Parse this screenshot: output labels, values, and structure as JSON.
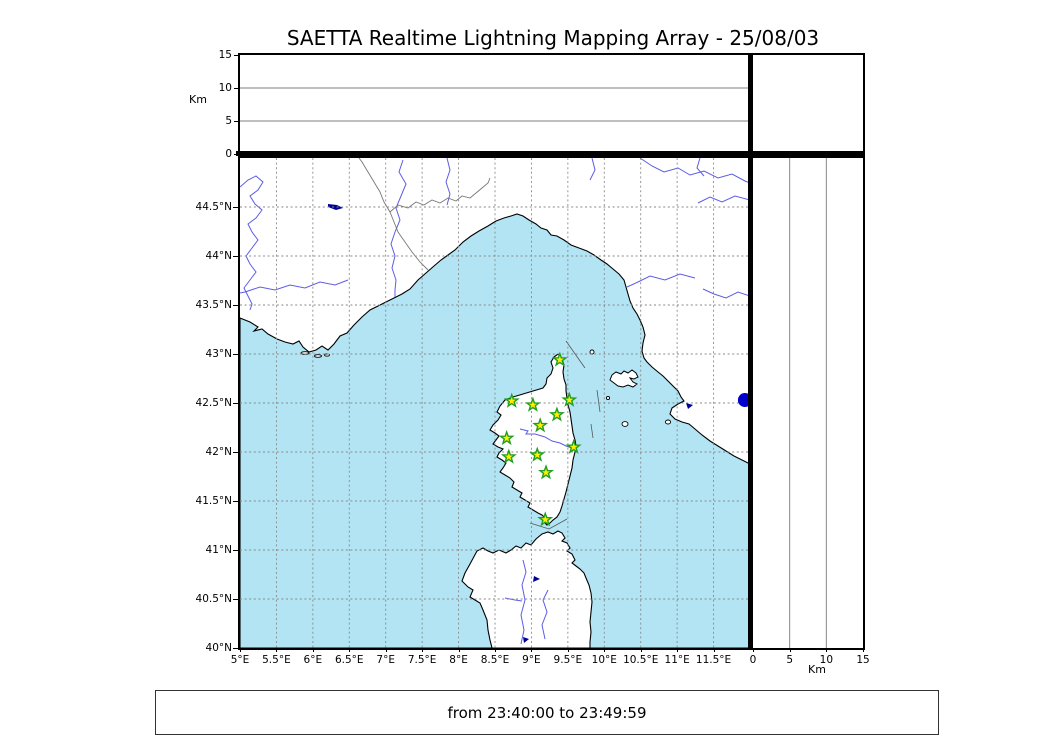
{
  "title": "SAETTA Realtime Lightning Mapping Array - 25/08/03",
  "footer": {
    "time_range": "from 23:40:00 to 23:49:59"
  },
  "alt_axis": {
    "label": "Km",
    "tick_values": [
      0,
      5,
      10,
      15
    ],
    "tick_labels": [
      "0",
      "5",
      "10",
      "15"
    ],
    "max_km": 15,
    "gridlines_km": [
      5,
      10
    ]
  },
  "map_axes": {
    "lon_range": [
      5,
      12
    ],
    "lat_range": [
      40,
      45
    ],
    "grid_step_deg": 0.5,
    "lon_tick_values": [
      5,
      5.5,
      6,
      6.5,
      7,
      7.5,
      8,
      8.5,
      9,
      9.5,
      10,
      10.5,
      11,
      11.5
    ],
    "lon_tick_labels": [
      "5°E",
      "5.5°E",
      "6°E",
      "6.5°E",
      "7°E",
      "7.5°E",
      "8°E",
      "8.5°E",
      "9°E",
      "9.5°E",
      "10°E",
      "10.5°E",
      "11°E",
      "11.5°E"
    ],
    "lat_tick_values": [
      44.5,
      44,
      43.5,
      43,
      42.5,
      42,
      41.5,
      41,
      40.5,
      40
    ],
    "lat_tick_labels": [
      "44.5°N",
      "44°N",
      "43.5°N",
      "43°N",
      "42.5°N",
      "42°N",
      "41.5°N",
      "41°N",
      "40.5°N",
      "40°N"
    ]
  },
  "stations": [
    {
      "lon": 9.39,
      "lat": 42.94
    },
    {
      "lon": 8.73,
      "lat": 42.52
    },
    {
      "lon": 9.02,
      "lat": 42.48
    },
    {
      "lon": 9.52,
      "lat": 42.53
    },
    {
      "lon": 9.35,
      "lat": 42.38
    },
    {
      "lon": 9.12,
      "lat": 42.27
    },
    {
      "lon": 8.66,
      "lat": 42.14
    },
    {
      "lon": 9.58,
      "lat": 42.05
    },
    {
      "lon": 9.08,
      "lat": 41.97
    },
    {
      "lon": 8.69,
      "lat": 41.95
    },
    {
      "lon": 9.2,
      "lat": 41.79
    },
    {
      "lon": 9.19,
      "lat": 41.31
    }
  ],
  "lightning_source": {
    "lon": 11.93,
    "lat": 42.53
  },
  "colors": {
    "sea": "#b2e4f3",
    "land": "#ffffff",
    "coastline": "#000000",
    "river": "#5c5ce6",
    "lake": "#000099",
    "graticule": "#8a8a8a",
    "country_border": "#777777",
    "track": "#555555",
    "panel_gridline": "#555555",
    "station_fill": "#ffee00",
    "station_stroke": "#1f9f1f",
    "source_dot": "#0000cc",
    "frame": "#000000"
  }
}
